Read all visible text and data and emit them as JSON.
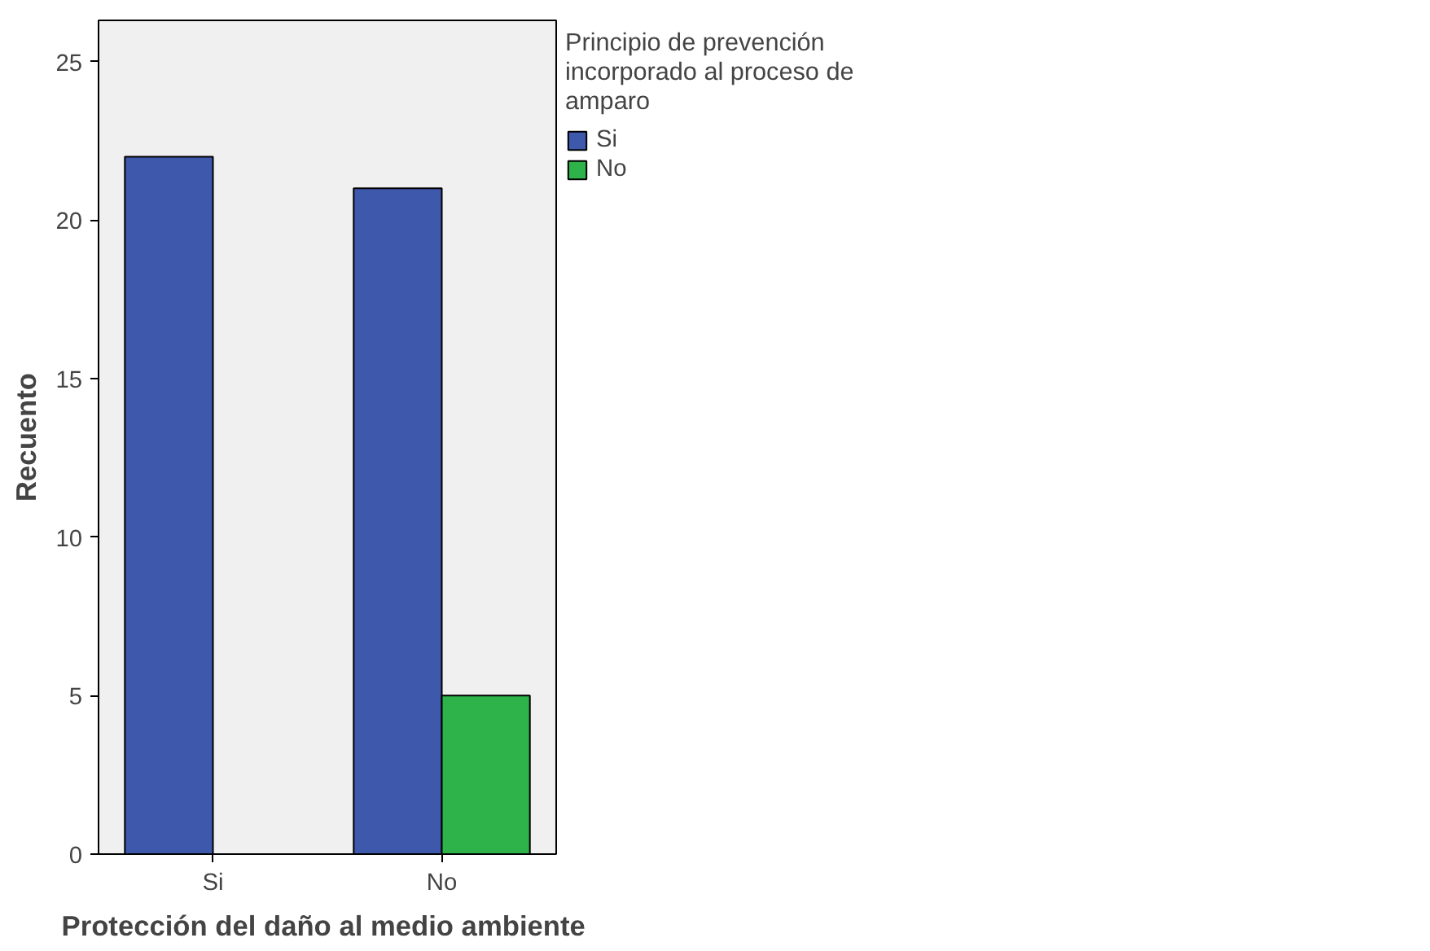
{
  "chart_data": {
    "type": "bar",
    "categories": [
      "Si",
      "No"
    ],
    "xlabel": "Protección del  daño al medio ambiente",
    "ylabel": "Recuento",
    "legend_title": "Principio de prevención incorporado al proceso de amparo",
    "series": [
      {
        "name": "Si",
        "color": "#3e58ac",
        "values": [
          22,
          21
        ]
      },
      {
        "name": "No",
        "color": "#2db34a",
        "values": [
          null,
          5
        ]
      }
    ],
    "ylim": [
      0,
      26.3
    ],
    "yticks": [
      0,
      5,
      10,
      15,
      20,
      25
    ],
    "grid": false,
    "legend": "top right"
  }
}
